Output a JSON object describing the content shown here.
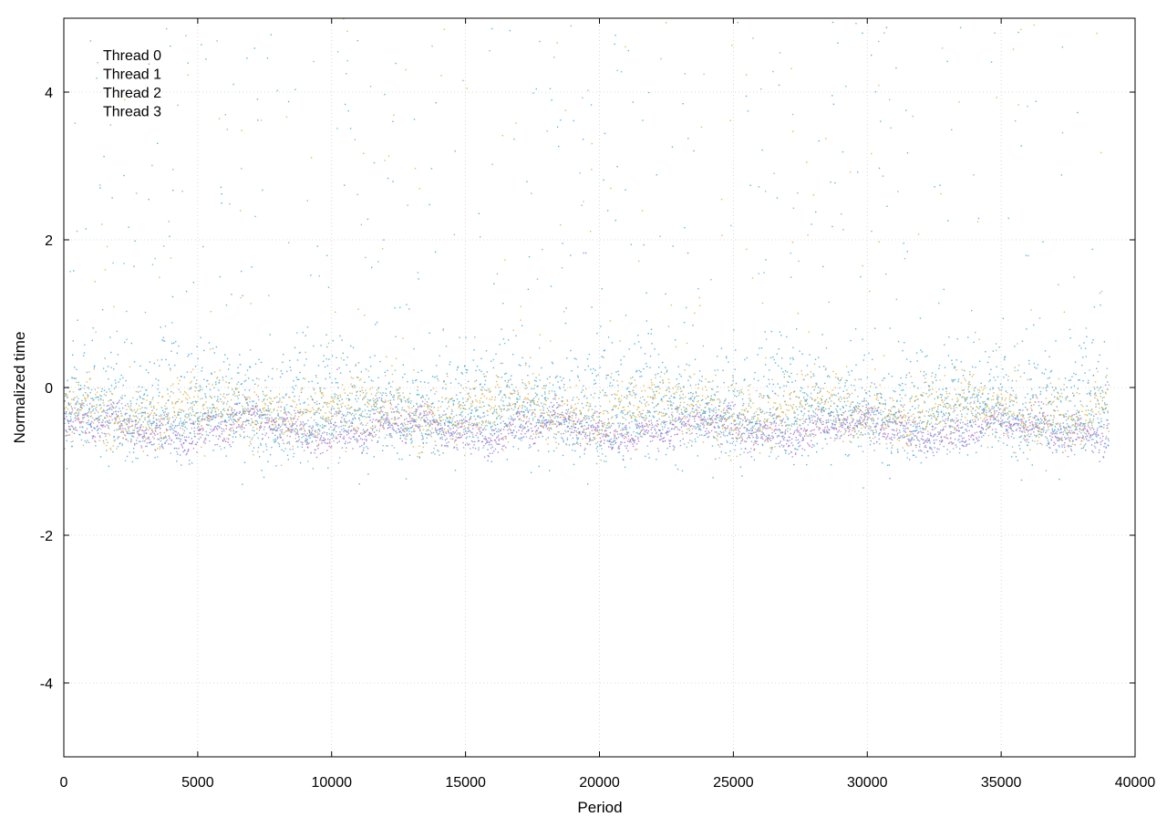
{
  "chart_data": {
    "type": "scatter",
    "title": "",
    "xlabel": "Period",
    "ylabel": "Normalized time",
    "xlim": [
      0,
      40000
    ],
    "ylim": [
      -5,
      5
    ],
    "xticks": [
      0,
      5000,
      10000,
      15000,
      20000,
      25000,
      30000,
      35000,
      40000
    ],
    "yticks": [
      -4,
      -2,
      0,
      2,
      4
    ],
    "xtick_labels": [
      "0",
      "5000",
      "10000",
      "15000",
      "20000",
      "25000",
      "30000",
      "35000",
      "40000"
    ],
    "ytick_labels": [
      "-4",
      "-2",
      "0",
      "2",
      "4"
    ],
    "grid": true,
    "legend_position": "top-left",
    "x_range_of_data": [
      0,
      39000
    ],
    "series": [
      {
        "name": "Thread 0",
        "color": "#a05fd0",
        "band_center": -0.55,
        "band_spread": 0.12,
        "outlier_rate": 0.005
      },
      {
        "name": "Thread 1",
        "color": "#5aaac0",
        "band_center": -0.45,
        "band_spread": 0.18,
        "outlier_rate": 0.09
      },
      {
        "name": "Thread 2",
        "color": "#d4a72c",
        "band_center": -0.3,
        "band_spread": 0.22,
        "outlier_rate": 0.07
      },
      {
        "name": "Thread 3",
        "color": "#2a9fd0",
        "band_center": -0.2,
        "band_spread": 0.4,
        "outlier_rate": 0.14
      }
    ]
  }
}
